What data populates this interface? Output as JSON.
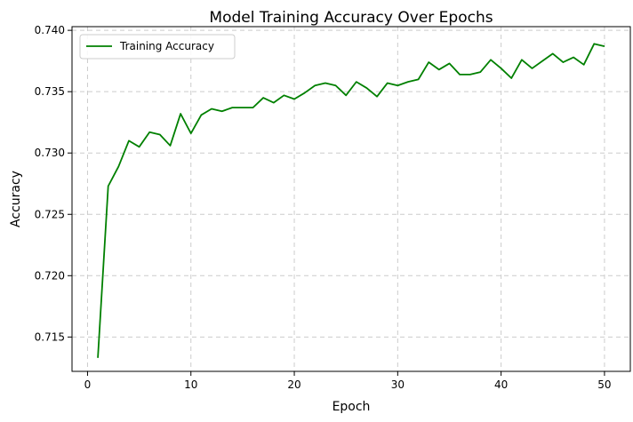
{
  "chart_data": {
    "type": "line",
    "title": "Model Training Accuracy Over Epochs",
    "xlabel": "Epoch",
    "ylabel": "Accuracy",
    "xlim": [
      -1.5,
      52.5
    ],
    "ylim": [
      0.7122,
      0.7403
    ],
    "xticks": [
      0,
      10,
      20,
      30,
      40,
      50
    ],
    "yticks": [
      0.715,
      0.72,
      0.725,
      0.73,
      0.735,
      0.74
    ],
    "ytick_format": 3,
    "grid": true,
    "legend_position": "top-left",
    "series": [
      {
        "name": "Training Accuracy",
        "color": "#008000",
        "x": [
          1,
          2,
          3,
          4,
          5,
          6,
          7,
          8,
          9,
          10,
          11,
          12,
          13,
          14,
          15,
          16,
          17,
          18,
          19,
          20,
          21,
          22,
          23,
          24,
          25,
          26,
          27,
          28,
          29,
          30,
          31,
          32,
          33,
          34,
          35,
          36,
          37,
          38,
          39,
          40,
          41,
          42,
          43,
          44,
          45,
          46,
          47,
          48,
          49,
          50
        ],
        "y": [
          0.7133,
          0.7273,
          0.7289,
          0.731,
          0.7305,
          0.7317,
          0.7315,
          0.7306,
          0.7332,
          0.7316,
          0.7331,
          0.7336,
          0.7334,
          0.7337,
          0.7337,
          0.7337,
          0.7345,
          0.7341,
          0.7347,
          0.7344,
          0.7349,
          0.7355,
          0.7357,
          0.7355,
          0.7347,
          0.7358,
          0.7353,
          0.7346,
          0.7357,
          0.7355,
          0.7358,
          0.736,
          0.7374,
          0.7368,
          0.7373,
          0.7364,
          0.7364,
          0.7366,
          0.7376,
          0.7369,
          0.7361,
          0.7376,
          0.7369,
          0.7375,
          0.7381,
          0.7374,
          0.7378,
          0.7372,
          0.7389,
          0.7387
        ]
      }
    ]
  }
}
